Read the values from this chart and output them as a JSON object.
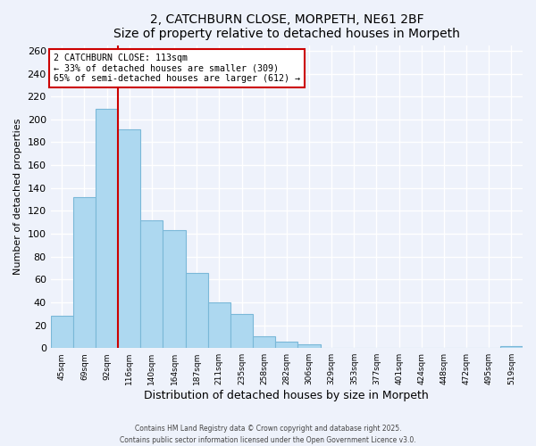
{
  "title": "2, CATCHBURN CLOSE, MORPETH, NE61 2BF",
  "subtitle": "Size of property relative to detached houses in Morpeth",
  "xlabel": "Distribution of detached houses by size in Morpeth",
  "ylabel": "Number of detached properties",
  "bar_values": [
    28,
    132,
    209,
    191,
    112,
    103,
    66,
    40,
    30,
    10,
    6,
    3,
    0,
    0,
    0,
    0,
    0,
    0,
    0,
    0,
    2
  ],
  "bar_labels": [
    "45sqm",
    "69sqm",
    "92sqm",
    "116sqm",
    "140sqm",
    "164sqm",
    "187sqm",
    "211sqm",
    "235sqm",
    "258sqm",
    "282sqm",
    "306sqm",
    "329sqm",
    "353sqm",
    "377sqm",
    "401sqm",
    "424sqm",
    "448sqm",
    "472sqm",
    "495sqm",
    "519sqm"
  ],
  "bar_color": "#add8f0",
  "bar_edge_color": "#7ab8d8",
  "annotation_box_text": "2 CATCHBURN CLOSE: 113sqm\n← 33% of detached houses are smaller (309)\n65% of semi-detached houses are larger (612) →",
  "property_line_bin": 3,
  "ylim": [
    0,
    265
  ],
  "yticks": [
    0,
    20,
    40,
    60,
    80,
    100,
    120,
    140,
    160,
    180,
    200,
    220,
    240,
    260
  ],
  "background_color": "#eef2fb",
  "grid_color": "#ffffff",
  "annotation_box_color": "#ffffff",
  "annotation_box_edge_color": "#cc0000",
  "property_line_color": "#cc0000",
  "footer_line1": "Contains HM Land Registry data © Crown copyright and database right 2025.",
  "footer_line2": "Contains public sector information licensed under the Open Government Licence v3.0."
}
